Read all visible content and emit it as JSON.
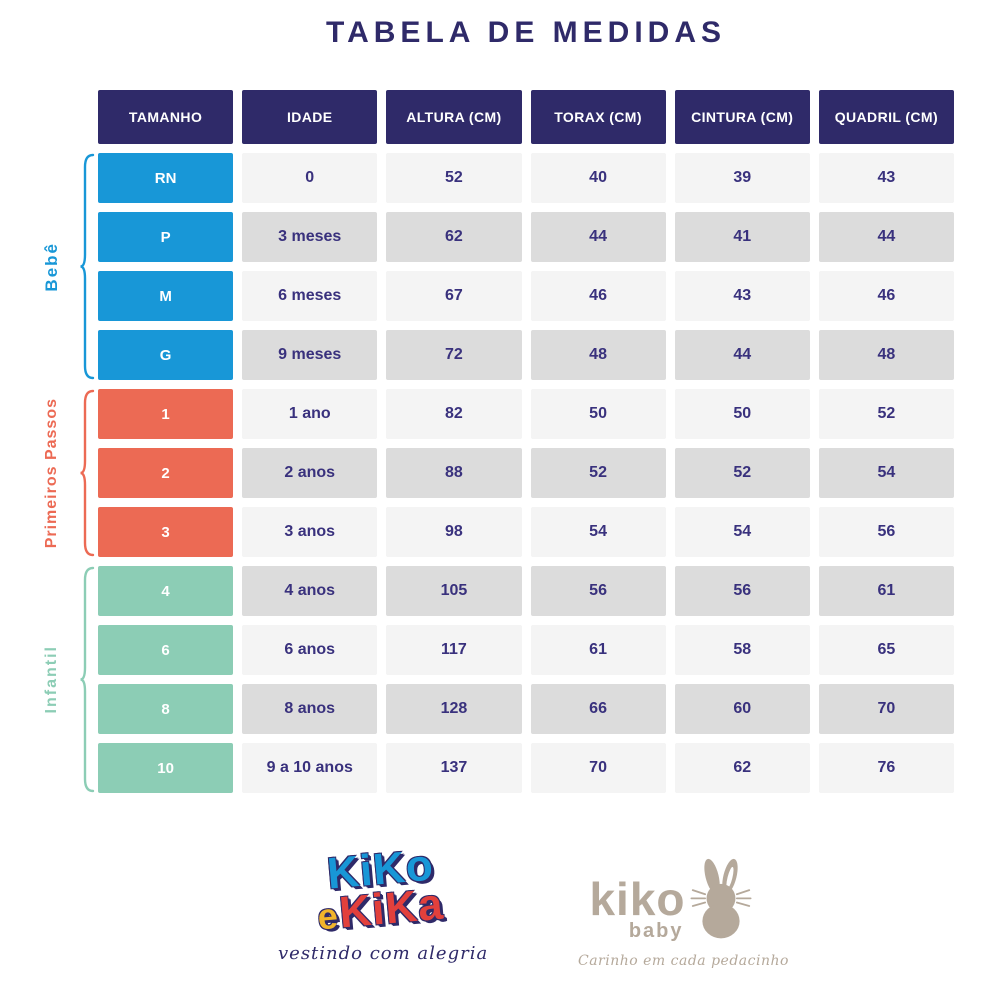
{
  "title": "TABELA DE MEDIDAS",
  "colors": {
    "navy": "#2f2a69",
    "cell_text": "#39317d",
    "blue": "#1897d7",
    "coral": "#ec6a54",
    "mint": "#8ccdb5",
    "row_light": "#f4f4f4",
    "row_dark": "#dcdcdc",
    "beige": "#b5a99b",
    "yellow": "#f2b52b",
    "red": "#e2403c"
  },
  "table": {
    "headers": [
      "TAMANHO",
      "IDADE",
      "ALTURA (CM)",
      "TORAX (CM)",
      "CINTURA (CM)",
      "QUADRIL (CM)"
    ],
    "groups": [
      {
        "name": "Bebê",
        "color_key": "blue",
        "rows": [
          [
            "RN",
            "0",
            "52",
            "40",
            "39",
            "43"
          ],
          [
            "P",
            "3 meses",
            "62",
            "44",
            "41",
            "44"
          ],
          [
            "M",
            "6 meses",
            "67",
            "46",
            "43",
            "46"
          ],
          [
            "G",
            "9 meses",
            "72",
            "48",
            "44",
            "48"
          ]
        ]
      },
      {
        "name": "Primeiros Passos",
        "color_key": "coral",
        "rows": [
          [
            "1",
            "1 ano",
            "82",
            "50",
            "50",
            "52"
          ],
          [
            "2",
            "2 anos",
            "88",
            "52",
            "52",
            "54"
          ],
          [
            "3",
            "3 anos",
            "98",
            "54",
            "54",
            "56"
          ]
        ]
      },
      {
        "name": "Infantil",
        "color_key": "mint",
        "rows": [
          [
            "4",
            "4 anos",
            "105",
            "56",
            "56",
            "61"
          ],
          [
            "6",
            "6 anos",
            "117",
            "61",
            "58",
            "65"
          ],
          [
            "8",
            "8 anos",
            "128",
            "66",
            "60",
            "70"
          ],
          [
            "10",
            "9 a 10 anos",
            "137",
            "70",
            "62",
            "76"
          ]
        ]
      }
    ]
  },
  "logos": {
    "kiko_e_kika": {
      "word1": "KiKo",
      "word2_e": "e",
      "word2_kika": "KiKa",
      "tagline": "vestindo com alegria"
    },
    "kiko_baby": {
      "name": "kiko",
      "sub": "baby",
      "tagline": "Carinho em cada pedacinho"
    }
  }
}
